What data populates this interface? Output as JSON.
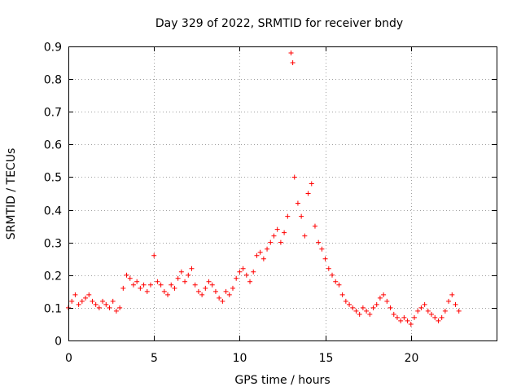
{
  "chart_data": {
    "type": "scatter",
    "title": "Day 329 of 2022, SRMTID for receiver bndy",
    "xlabel": "GPS time / hours",
    "ylabel": "SRMTID / TECUs",
    "xlim": [
      0,
      25
    ],
    "ylim": [
      0,
      0.9
    ],
    "xticks": [
      0,
      5,
      10,
      15,
      20
    ],
    "xtick_labels": [
      "0",
      "5",
      "10",
      "15",
      "20"
    ],
    "yticks": [
      0,
      0.1,
      0.2,
      0.3,
      0.4,
      0.5,
      0.6,
      0.7,
      0.8,
      0.9
    ],
    "ytick_labels": [
      "0",
      "0.1",
      "0.2",
      "0.3",
      "0.4",
      "0.5",
      "0.6",
      "0.7",
      "0.8",
      "0.9"
    ],
    "grid": true,
    "marker": "+",
    "series": [
      {
        "name": "SRMTID",
        "color": "#ff0000",
        "x": [
          0.0,
          0.2,
          0.4,
          0.6,
          0.8,
          1.0,
          1.2,
          1.4,
          1.6,
          1.8,
          2.0,
          2.2,
          2.4,
          2.6,
          2.8,
          3.0,
          3.2,
          3.4,
          3.6,
          3.8,
          4.0,
          4.2,
          4.4,
          4.6,
          4.8,
          5.0,
          5.2,
          5.4,
          5.6,
          5.8,
          6.0,
          6.2,
          6.4,
          6.6,
          6.8,
          7.0,
          7.2,
          7.4,
          7.6,
          7.8,
          8.0,
          8.2,
          8.4,
          8.6,
          8.8,
          9.0,
          9.2,
          9.4,
          9.6,
          9.8,
          10.0,
          10.2,
          10.4,
          10.6,
          10.8,
          11.0,
          11.2,
          11.4,
          11.6,
          11.8,
          12.0,
          12.2,
          12.4,
          12.6,
          12.8,
          13.0,
          13.1,
          13.2,
          13.4,
          13.6,
          13.8,
          14.0,
          14.2,
          14.4,
          14.6,
          14.8,
          15.0,
          15.2,
          15.4,
          15.6,
          15.8,
          16.0,
          16.2,
          16.4,
          16.6,
          16.8,
          17.0,
          17.2,
          17.4,
          17.6,
          17.8,
          18.0,
          18.2,
          18.4,
          18.6,
          18.8,
          19.0,
          19.2,
          19.4,
          19.6,
          19.8,
          20.0,
          20.2,
          20.4,
          20.6,
          20.8,
          21.0,
          21.2,
          21.4,
          21.6,
          21.8,
          22.0,
          22.2,
          22.4,
          22.6,
          22.8
        ],
        "values": [
          0.1,
          0.12,
          0.14,
          0.11,
          0.12,
          0.13,
          0.14,
          0.12,
          0.11,
          0.1,
          0.12,
          0.11,
          0.1,
          0.12,
          0.09,
          0.1,
          0.16,
          0.2,
          0.19,
          0.17,
          0.18,
          0.16,
          0.17,
          0.15,
          0.17,
          0.26,
          0.18,
          0.17,
          0.15,
          0.14,
          0.17,
          0.16,
          0.19,
          0.21,
          0.18,
          0.2,
          0.22,
          0.17,
          0.15,
          0.14,
          0.16,
          0.18,
          0.17,
          0.15,
          0.13,
          0.12,
          0.15,
          0.14,
          0.16,
          0.19,
          0.21,
          0.22,
          0.2,
          0.18,
          0.21,
          0.26,
          0.27,
          0.25,
          0.28,
          0.3,
          0.32,
          0.34,
          0.3,
          0.33,
          0.38,
          0.88,
          0.85,
          0.5,
          0.42,
          0.38,
          0.32,
          0.45,
          0.48,
          0.35,
          0.3,
          0.28,
          0.25,
          0.22,
          0.2,
          0.18,
          0.17,
          0.14,
          0.12,
          0.11,
          0.1,
          0.09,
          0.08,
          0.1,
          0.09,
          0.08,
          0.1,
          0.11,
          0.13,
          0.14,
          0.12,
          0.1,
          0.08,
          0.07,
          0.06,
          0.07,
          0.06,
          0.05,
          0.07,
          0.09,
          0.1,
          0.11,
          0.09,
          0.08,
          0.07,
          0.06,
          0.07,
          0.09,
          0.12,
          0.14,
          0.11,
          0.09
        ]
      }
    ]
  }
}
